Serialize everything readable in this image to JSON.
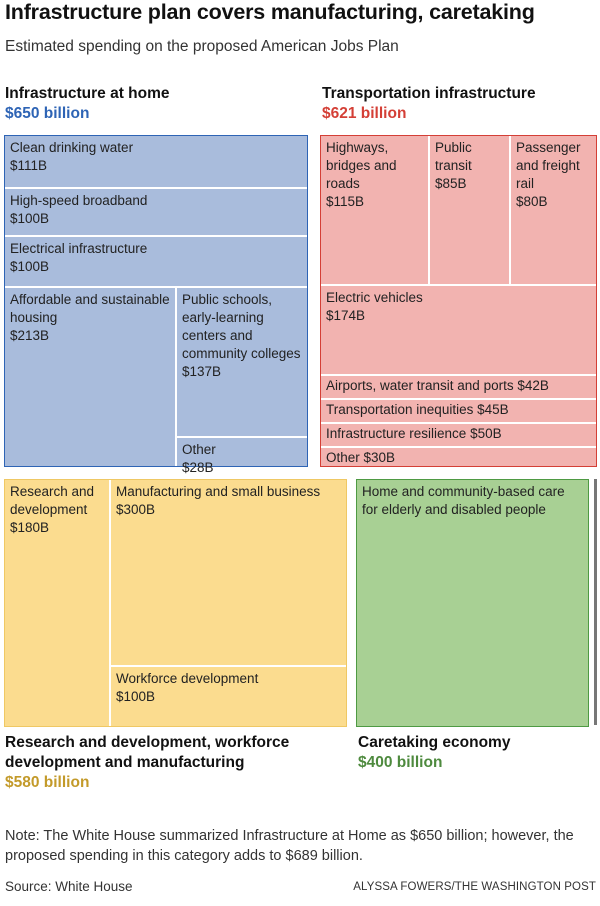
{
  "title": "Infrastructure plan covers manufacturing, caretaking",
  "subtitle": "Estimated spending on the proposed American Jobs Plan",
  "colors": {
    "home_fill": "#a9bcdc",
    "home_border": "#2e64b5",
    "home_text": "#2e64b5",
    "transport_fill": "#f2b3b0",
    "transport_border": "#d43f36",
    "transport_text": "#d43f36",
    "rd_fill": "#fbdc8f",
    "rd_border": "#efc864",
    "rd_text": "#c39a2a",
    "care_fill": "#a8d094",
    "care_border": "#4e9a43",
    "care_text": "#4e8a3e"
  },
  "chart_data": {
    "type": "treemap",
    "title": "Infrastructure plan covers manufacturing, caretaking",
    "subtitle": "Estimated spending on the proposed American Jobs Plan",
    "unit": "billion dollars",
    "groups": [
      {
        "key": "home",
        "name": "Infrastructure at home",
        "total_label": "$650 billion",
        "total": 650,
        "items": [
          {
            "label": "Clean drinking water",
            "value_label": "$111B",
            "value": 111
          },
          {
            "label": "High-speed broadband",
            "value_label": "$100B",
            "value": 100
          },
          {
            "label": "Electrical infrastructure",
            "value_label": "$100B",
            "value": 100
          },
          {
            "label": "Affordable and sustainable housing",
            "value_label": "$213B",
            "value": 213
          },
          {
            "label": "Public schools, early-learning centers and community colleges",
            "value_label": "$137B",
            "value": 137
          },
          {
            "label": "Other",
            "value_label": "$28B",
            "value": 28
          }
        ]
      },
      {
        "key": "transport",
        "name": "Transportation infrastructure",
        "total_label": "$621 billion",
        "total": 621,
        "items": [
          {
            "label": "Highways, bridges and roads",
            "value_label": "$115B",
            "value": 115
          },
          {
            "label": "Public transit",
            "value_label": "$85B",
            "value": 85
          },
          {
            "label": "Passenger and freight rail",
            "value_label": "$80B",
            "value": 80
          },
          {
            "label": "Electric vehicles",
            "value_label": "$174B",
            "value": 174
          },
          {
            "label": "Airports, water transit and ports",
            "value_label": "$42B",
            "value": 42
          },
          {
            "label": "Transportation inequities",
            "value_label": "$45B",
            "value": 45
          },
          {
            "label": "Infrastructure resilience",
            "value_label": "$50B",
            "value": 50
          },
          {
            "label": "Other",
            "value_label": "$30B",
            "value": 30
          }
        ]
      },
      {
        "key": "rd",
        "name": "Research and development, workforce development and manufacturing",
        "total_label": "$580 billion",
        "total": 580,
        "items": [
          {
            "label": "Research and development",
            "value_label": "$180B",
            "value": 180
          },
          {
            "label": "Manufacturing and small business",
            "value_label": "$300B",
            "value": 300
          },
          {
            "label": "Workforce development",
            "value_label": "$100B",
            "value": 100
          }
        ]
      },
      {
        "key": "care",
        "name": "Caretaking economy",
        "total_label": "$400 billion",
        "total": 400,
        "items": [
          {
            "label": "Home and community-based care for elderly and disabled people",
            "value_label": "",
            "value": 400
          }
        ]
      }
    ]
  },
  "note": "Note: The White House summarized Infrastructure at Home as $650 billion; however, the proposed spending in this category adds to $689 billion.",
  "source": "Source: White House",
  "credit": "ALYSSA FOWERS/THE WASHINGTON POST"
}
